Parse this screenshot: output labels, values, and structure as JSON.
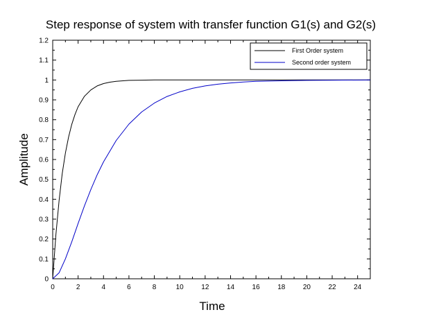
{
  "chart_data": {
    "type": "line",
    "title": "Step response of system with transfer function G1(s) and G2(s)",
    "xlabel": "Time",
    "ylabel": "Amplitude",
    "xlim": [
      0,
      25
    ],
    "ylim": [
      0,
      1.2
    ],
    "x_ticks": [
      "0",
      "2",
      "4",
      "6",
      "8",
      "10",
      "12",
      "14",
      "16",
      "18",
      "20",
      "22",
      "24"
    ],
    "y_ticks": [
      "0",
      "0.1",
      "0.2",
      "0.3",
      "0.4",
      "0.5",
      "0.6",
      "0.7",
      "0.8",
      "0.9",
      "1",
      "1.1",
      "1.2"
    ],
    "grid": false,
    "legend_position": "top-right",
    "series": [
      {
        "name": "First Order system",
        "color": "#000000",
        "x": [
          0,
          0.25,
          0.5,
          0.75,
          1,
          1.25,
          1.5,
          1.75,
          2,
          2.5,
          3,
          3.5,
          4,
          4.5,
          5,
          6,
          7,
          8,
          10,
          12,
          15,
          20,
          25
        ],
        "y": [
          0,
          0.221,
          0.393,
          0.528,
          0.632,
          0.713,
          0.777,
          0.826,
          0.865,
          0.918,
          0.95,
          0.97,
          0.982,
          0.989,
          0.993,
          0.998,
          0.999,
          1.0,
          1.0,
          1.0,
          1.0,
          1.0,
          1.0
        ]
      },
      {
        "name": "Second order system",
        "color": "#0000c8",
        "x": [
          0,
          0.5,
          1,
          1.5,
          2,
          2.5,
          3,
          3.5,
          4,
          5,
          6,
          7,
          8,
          9,
          10,
          11,
          12,
          13,
          14,
          15,
          16,
          18,
          20,
          22,
          25
        ],
        "y": [
          0,
          0.03,
          0.1,
          0.186,
          0.278,
          0.367,
          0.449,
          0.523,
          0.588,
          0.696,
          0.778,
          0.839,
          0.884,
          0.917,
          0.94,
          0.958,
          0.97,
          0.979,
          0.985,
          0.99,
          0.993,
          0.996,
          0.998,
          0.999,
          1.0
        ]
      }
    ]
  }
}
